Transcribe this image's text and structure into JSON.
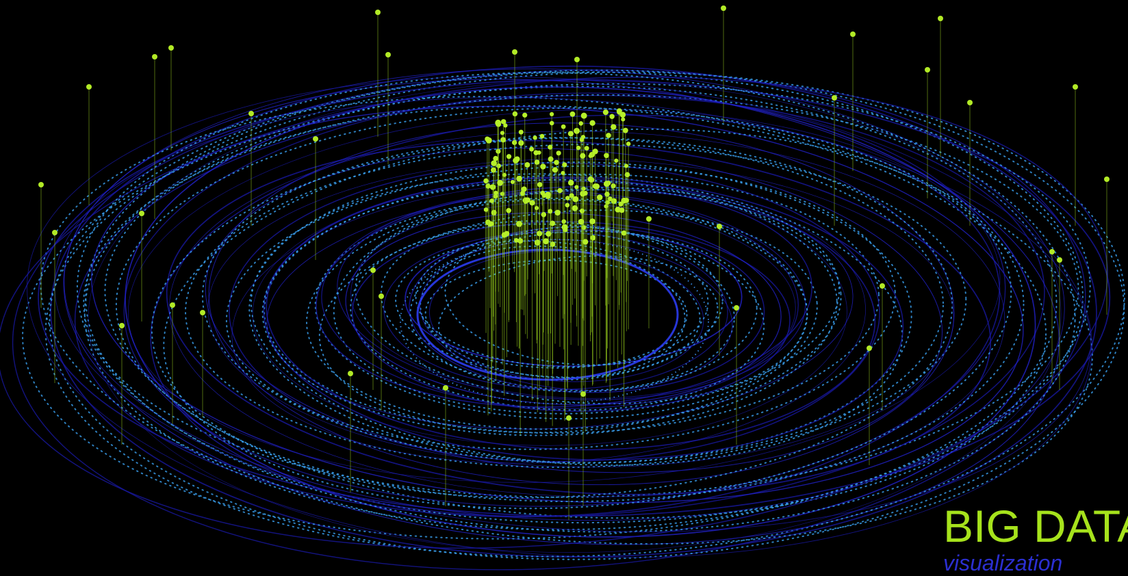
{
  "title": "BIG DATA",
  "subtitle": "visualization"
}
